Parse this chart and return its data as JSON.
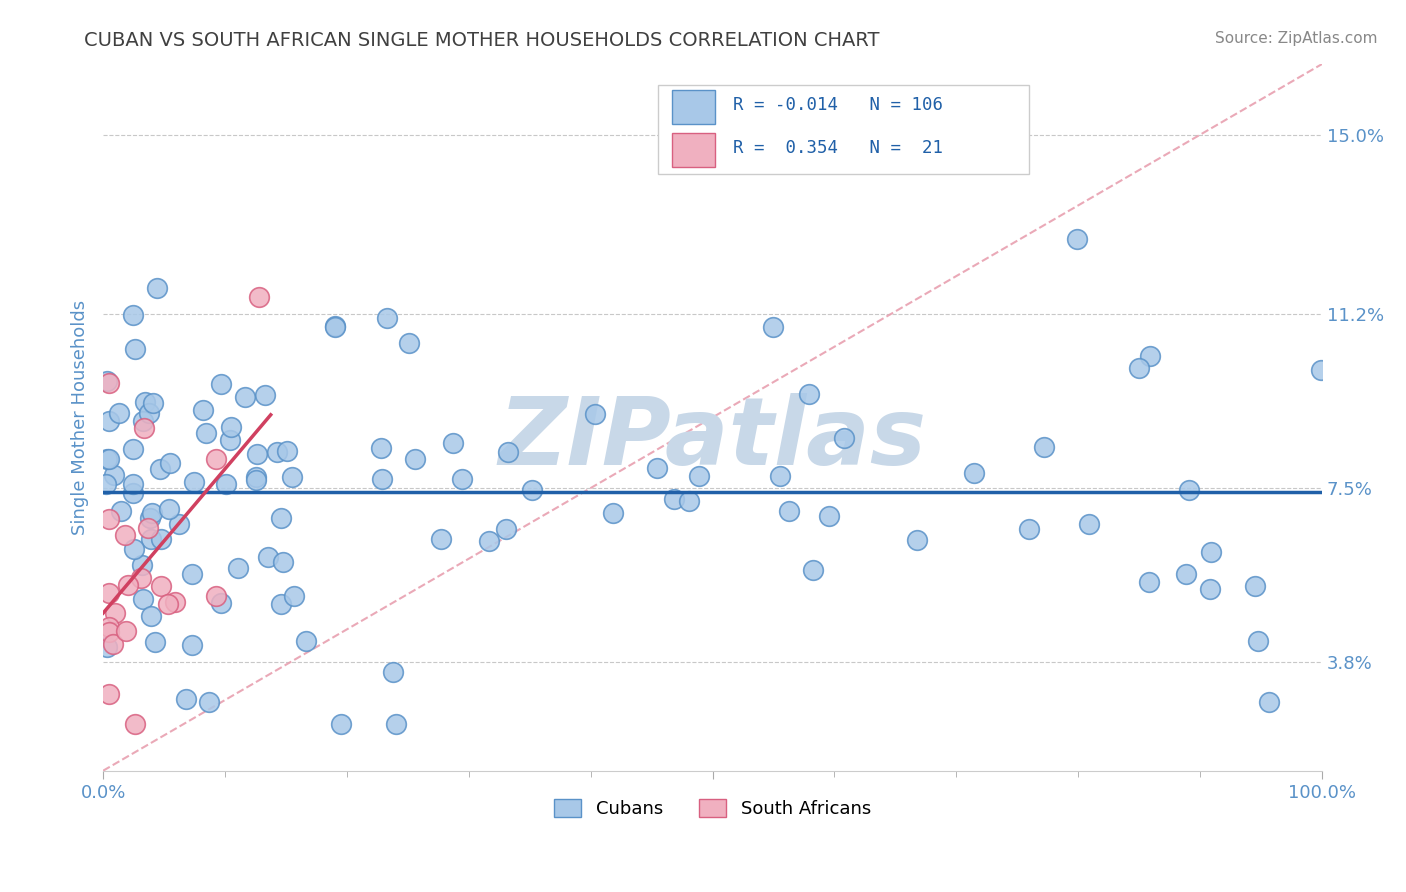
{
  "title": "CUBAN VS SOUTH AFRICAN SINGLE MOTHER HOUSEHOLDS CORRELATION CHART",
  "source": "Source: ZipAtlas.com",
  "ylabel": "Single Mother Households",
  "xlim": [
    0.0,
    1.0
  ],
  "ylim": [
    0.015,
    0.165
  ],
  "yticks": [
    0.038,
    0.075,
    0.112,
    0.15
  ],
  "ytick_labels": [
    "3.8%",
    "7.5%",
    "11.2%",
    "15.0%"
  ],
  "xtick_labels": [
    "0.0%",
    "100.0%"
  ],
  "cuban_color": "#a8c8e8",
  "cuban_edge_color": "#5a92c8",
  "sa_color": "#f0b0c0",
  "sa_edge_color": "#d86080",
  "cuban_R": -0.014,
  "cuban_N": 106,
  "sa_R": 0.354,
  "sa_N": 21,
  "cuban_line_color": "#2060a8",
  "sa_line_color": "#d04060",
  "diag_line_color": "#e8a0b0",
  "grid_color": "#c8c8c8",
  "title_color": "#404040",
  "tick_label_color": "#5a92c8",
  "watermark": "ZIPatlas",
  "watermark_color": "#c8d8e8",
  "background_color": "#ffffff",
  "legend_box_color": "#ffffff",
  "legend_border_color": "#cccccc"
}
